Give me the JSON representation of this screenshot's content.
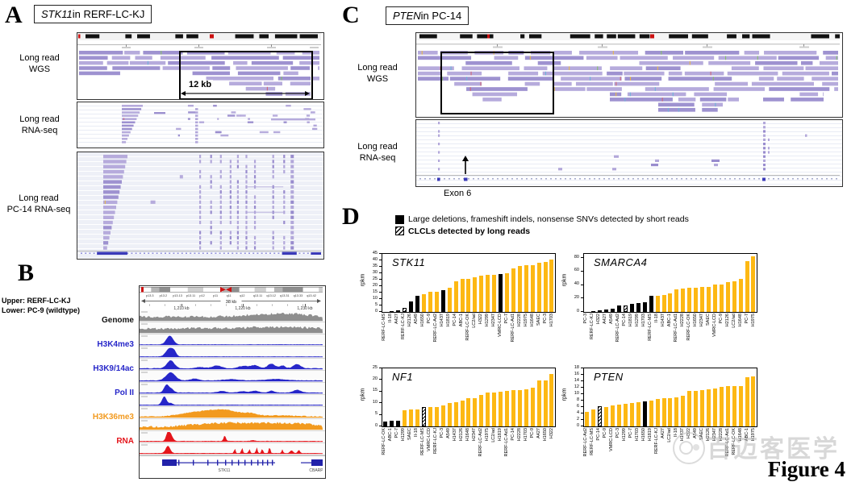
{
  "colors": {
    "bar_orange": "#FDB813",
    "bar_black": "#000000",
    "read_purple": "#b2a7da",
    "blue_track": "#2626c9",
    "orange_track": "#f29a1f",
    "red_track": "#e4151b",
    "gray_track": "#8d8d8d"
  },
  "panel_a": {
    "letter": "A",
    "title": {
      "gene": "STK11",
      "suffix": " in RERF-LC-KJ"
    },
    "wgs_label_1": "Long read",
    "wgs_label_2": "WGS",
    "rna_label_1": "Long read",
    "rna_label_2": "RNA-seq",
    "pc14_label_1": "Long read",
    "pc14_label_2": "PC-14 RNA-seq",
    "box_label": "12 kb"
  },
  "panel_b": {
    "letter": "B",
    "header_upper": "Upper: RERF-LC-KJ",
    "header_lower": "Lower: PC-9 (wildtype)",
    "tracks": [
      {
        "label": "Genome",
        "color": "#111111"
      },
      {
        "label": "H3K4me3",
        "color": "#2626c9"
      },
      {
        "label": "H3K9/14ac",
        "color": "#2626c9"
      },
      {
        "label": "Pol II",
        "color": "#2626c9"
      },
      {
        "label": "H3K36me3",
        "color": "#f29a1f"
      },
      {
        "label": "RNA",
        "color": "#e4151b"
      }
    ],
    "span_label": "38 kb",
    "ruler_ticks": [
      "1,210 kb",
      "1,220 kb",
      "1,230 kb"
    ],
    "band_labels": [
      "p13.3",
      "p13.2",
      "p13.13",
      "p13.11",
      "p12",
      "p11",
      "q11",
      "q12",
      "q13.11",
      "q13.12",
      "q13.31",
      "q13.33",
      "q13.42"
    ],
    "gene_labels": [
      "STK11",
      "CBARP"
    ]
  },
  "panel_c": {
    "letter": "C",
    "title": {
      "gene": "PTEN",
      "suffix": " in PC-14"
    },
    "wgs_label_1": "Long read",
    "wgs_label_2": "WGS",
    "rna_label_1": "Long read",
    "rna_label_2": "RNA-seq",
    "exon_label": "Exon 6"
  },
  "panel_d": {
    "letter": "D",
    "legend": [
      {
        "style": "black",
        "label": "Large deletions, frameshift indels, nonsense SNVs detected by short reads"
      },
      {
        "style": "hatched",
        "label": "CLCLs detected by long reads"
      }
    ]
  },
  "chart_data": [
    {
      "type": "bar",
      "title": "STK11",
      "ylabel": "rpkm",
      "ylim": [
        0,
        45
      ],
      "axis_max": 45,
      "yticks": [
        0,
        5,
        10,
        15,
        20,
        25,
        30,
        35,
        40,
        45
      ],
      "categories": [
        "RERF-LC-MS",
        "II-18",
        "A427",
        "RERF-LC-KJ",
        "H2126",
        "A549",
        "H1650",
        "PC-9",
        "RERF-LC-Ad2",
        "H1437",
        "H1819",
        "PC-14",
        "ABC-1",
        "RERF-LC-OK",
        "LC2/ad",
        "H322",
        "H1299",
        "H2347",
        "VMRC-LCD",
        "PC-7",
        "RERF-LC-Ad1",
        "H2228",
        "H1975",
        "H1648",
        "SAEC",
        "PC-3",
        "H1703"
      ],
      "values": [
        0.2,
        0.5,
        1.2,
        3,
        8,
        12.5,
        13.5,
        15.5,
        15.5,
        17,
        19,
        24,
        25.5,
        25.5,
        27,
        28,
        28.5,
        28.5,
        29.5,
        30,
        33.5,
        35.5,
        36,
        36,
        38,
        38.5,
        40.5
      ],
      "bar_styles": [
        "black",
        "black",
        "black",
        "hatched",
        "black",
        "black",
        "orange",
        "orange",
        "orange",
        "black",
        "orange",
        "orange",
        "orange",
        "orange",
        "orange",
        "orange",
        "orange",
        "orange",
        "black",
        "orange",
        "orange",
        "orange",
        "orange",
        "orange",
        "orange",
        "orange",
        "orange"
      ]
    },
    {
      "type": "bar",
      "title": "SMARCA4",
      "ylabel": "rpkm",
      "ylim": [
        0,
        86
      ],
      "axis_max": 86,
      "yticks": [
        0,
        20,
        40,
        60,
        80
      ],
      "categories": [
        "PC-3",
        "RERF-LC-KJ",
        "H322",
        "A427",
        "A549",
        "RERF-LC-Ad2",
        "PC-14",
        "H1819",
        "H1299",
        "H1703",
        "RERF-LC-MS",
        "II-18",
        "H1437",
        "ABC-1",
        "RERF-LC-Ad1",
        "H2228",
        "RERF-LC-OK",
        "H1650",
        "H2347",
        "SAEC",
        "VMRC-LCD",
        "PC-9",
        "H2126",
        "LC2/ad",
        "H1648",
        "PC-7",
        "H1975"
      ],
      "values": [
        0.3,
        0.8,
        2.5,
        3.5,
        4.5,
        9,
        10,
        12,
        13,
        14,
        24,
        24.5,
        25.5,
        27,
        33,
        35,
        35.5,
        36,
        37,
        37.5,
        40.5,
        41,
        44.5,
        45,
        48.5,
        75,
        83
      ],
      "bar_styles": [
        "black",
        "black",
        "black",
        "black",
        "black",
        "black",
        "hatched",
        "black",
        "black",
        "black",
        "black",
        "orange",
        "orange",
        "orange",
        "orange",
        "orange",
        "orange",
        "orange",
        "orange",
        "orange",
        "orange",
        "orange",
        "orange",
        "orange",
        "orange",
        "orange",
        "orange"
      ]
    },
    {
      "type": "bar",
      "title": "NF1",
      "ylabel": "rpkm",
      "ylim": [
        0,
        25
      ],
      "axis_max": 25,
      "yticks": [
        0,
        5,
        10,
        15,
        20,
        25
      ],
      "categories": [
        "RERF-LC-OK",
        "ABC-1",
        "PC-7",
        "H1299",
        "SAEC",
        "II-18",
        "RERF-LC-MS",
        "VMRC-LCD",
        "RERF-LC-KJ",
        "PC-3",
        "A549",
        "H1437",
        "H2126",
        "H1648",
        "H2347",
        "RERF-LC-Ad2",
        "H1975",
        "LC2/ad",
        "H1819",
        "RERF-LC-Ad1",
        "PC-14",
        "H2228",
        "H1703",
        "PC-9",
        "A427",
        "H1650",
        "H322"
      ],
      "values": [
        2,
        2.3,
        2.6,
        7,
        7.2,
        7.4,
        8.5,
        8.5,
        8.5,
        9,
        10,
        10.5,
        11,
        12,
        12,
        13.5,
        14.7,
        14.7,
        15,
        15.2,
        15.5,
        15.5,
        16,
        16.7,
        19.8,
        19.8,
        22.7
      ],
      "bar_styles": [
        "black",
        "black",
        "black",
        "orange",
        "orange",
        "orange",
        "hatched",
        "orange",
        "orange",
        "orange",
        "orange",
        "orange",
        "orange",
        "orange",
        "orange",
        "orange",
        "orange",
        "orange",
        "orange",
        "orange",
        "orange",
        "orange",
        "orange",
        "orange",
        "orange",
        "orange",
        "orange"
      ]
    },
    {
      "type": "bar",
      "title": "PTEN",
      "ylabel": "rpkm",
      "ylim": [
        0,
        18
      ],
      "axis_max": 18,
      "yticks": [
        0,
        2,
        4,
        6,
        8,
        10,
        12,
        14,
        16,
        18
      ],
      "categories": [
        "RERF-LC-Ad2",
        "RERF-LC-MS",
        "PC-14",
        "PC-9",
        "VMRC-LCD",
        "PC-3",
        "H1299",
        "PC-7",
        "H1703",
        "H1650",
        "H1819",
        "RERF-LC-KJ",
        "A427",
        "LC2/ad",
        "II-18",
        "H1437",
        "H322",
        "A549",
        "SAEC",
        "H2126",
        "H2347",
        "H2228",
        "RERF-LC-Ad1",
        "RERF-LC-OK",
        "H1648",
        "ABC-1",
        "H1975"
      ],
      "values": [
        4.5,
        5.3,
        6.2,
        6,
        6.6,
        6.8,
        7,
        7.3,
        7.5,
        7.7,
        8,
        8.5,
        8.7,
        8.8,
        8.9,
        9.4,
        11,
        11,
        11.2,
        11.5,
        11.7,
        12.3,
        12.5,
        12.5,
        12.5,
        15.2,
        15.5
      ],
      "bar_styles": [
        "orange",
        "orange",
        "hatched",
        "orange",
        "orange",
        "orange",
        "orange",
        "orange",
        "orange",
        "black",
        "orange",
        "orange",
        "orange",
        "orange",
        "orange",
        "orange",
        "orange",
        "orange",
        "orange",
        "orange",
        "orange",
        "orange",
        "orange",
        "orange",
        "orange",
        "orange",
        "orange"
      ]
    }
  ],
  "watermark": {
    "text": "百迈客医学",
    "figure_label": "Figure 4"
  }
}
